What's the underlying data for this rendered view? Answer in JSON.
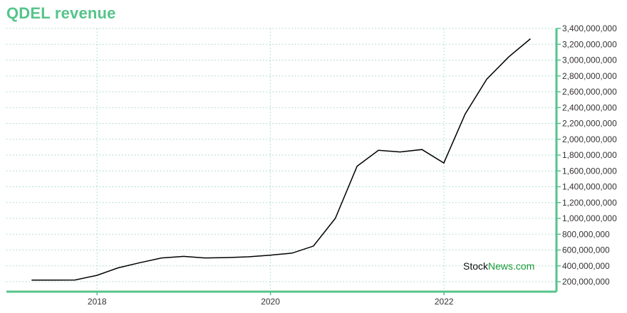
{
  "title": "QDEL revenue",
  "watermark": {
    "part1": "Stock",
    "part2": "News",
    "part3": ".com"
  },
  "colors": {
    "accent": "#55c48a",
    "line": "#000000",
    "grid": "#9fd9bb",
    "watermark_dark": "#111111",
    "watermark_green": "#1a9a3a"
  },
  "chart_data": {
    "type": "line",
    "title": "QDEL revenue",
    "xlabel": "",
    "ylabel": "",
    "x_ticks": [
      "2018",
      "2020",
      "2022"
    ],
    "y_ticks": [
      200000000,
      400000000,
      600000000,
      800000000,
      1000000000,
      1200000000,
      1400000000,
      1600000000,
      1800000000,
      2000000000,
      2200000000,
      2400000000,
      2600000000,
      2800000000,
      3000000000,
      3200000000,
      3400000000
    ],
    "y_tick_labels": [
      "200,000,000",
      "400,000,000",
      "600,000,000",
      "800,000,000",
      "1,000,000,000",
      "1,200,000,000",
      "1,400,000,000",
      "1,600,000,000",
      "1,800,000,000",
      "2,000,000,000",
      "2,200,000,000",
      "2,400,000,000",
      "2,600,000,000",
      "2,800,000,000",
      "3,000,000,000",
      "3,200,000,000",
      "3,400,000,000"
    ],
    "grid": true,
    "y_axis_side": "right",
    "series": [
      {
        "x": [
          "2017-03-31",
          "2017-06-30",
          "2017-09-30",
          "2017-12-31",
          "2018-03-31",
          "2018-06-30",
          "2018-09-30",
          "2018-12-31",
          "2019-03-31",
          "2019-06-30",
          "2019-09-30",
          "2019-12-31",
          "2020-03-31",
          "2020-06-30",
          "2020-09-30",
          "2020-12-31",
          "2021-03-31",
          "2021-06-30",
          "2021-09-30",
          "2021-12-31",
          "2022-03-31",
          "2022-06-30",
          "2022-09-30",
          "2022-12-31"
        ],
        "values": [
          220000000,
          220000000,
          222000000,
          280000000,
          375000000,
          440000000,
          500000000,
          520000000,
          500000000,
          505000000,
          515000000,
          535000000,
          560000000,
          650000000,
          1000000000,
          1660000000,
          1860000000,
          1840000000,
          1870000000,
          1700000000,
          2320000000,
          2760000000,
          3040000000,
          3270000000
        ]
      }
    ]
  }
}
